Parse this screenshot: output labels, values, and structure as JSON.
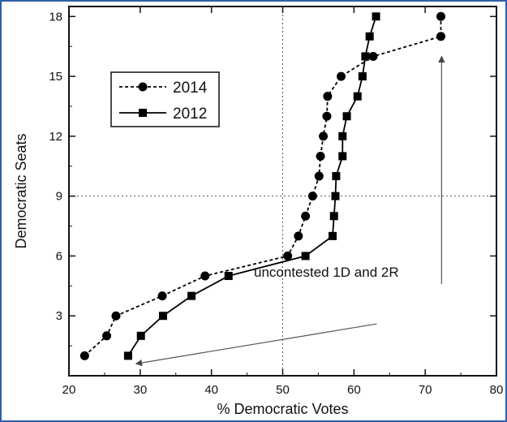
{
  "chart_data": {
    "type": "scatter",
    "xlabel": "% Democratic Votes",
    "ylabel": "Democratic Seats",
    "xlim": [
      20,
      80
    ],
    "ylim": [
      0,
      18.5
    ],
    "x_ticks": [
      "20",
      "30",
      "40",
      "50",
      "60",
      "70",
      "80"
    ],
    "y_ticks": [
      "3",
      "6",
      "9",
      "12",
      "15",
      "18"
    ],
    "reference_lines": {
      "x": 50,
      "y": 9,
      "style": "dotted"
    },
    "legend_position": "upper-left",
    "series": [
      {
        "name": "2014",
        "marker": "circle",
        "line_style": "dashed",
        "color": "#000000",
        "points": [
          [
            22.2,
            1
          ],
          [
            25.3,
            2
          ],
          [
            26.6,
            3
          ],
          [
            33.1,
            4
          ],
          [
            39.1,
            5
          ],
          [
            50.7,
            6
          ],
          [
            52.2,
            7
          ],
          [
            53.2,
            8
          ],
          [
            54.2,
            9
          ],
          [
            55.1,
            10
          ],
          [
            55.3,
            11
          ],
          [
            55.7,
            12
          ],
          [
            56.2,
            13
          ],
          [
            56.3,
            14
          ],
          [
            58.2,
            15
          ],
          [
            62.7,
            16
          ],
          [
            72.2,
            17
          ],
          [
            72.2,
            18
          ]
        ]
      },
      {
        "name": "2012",
        "marker": "square",
        "line_style": "solid",
        "color": "#000000",
        "points": [
          [
            28.3,
            1
          ],
          [
            30.1,
            2
          ],
          [
            33.2,
            3
          ],
          [
            37.2,
            4
          ],
          [
            42.4,
            5
          ],
          [
            53.2,
            6
          ],
          [
            57.0,
            7
          ],
          [
            57.2,
            8
          ],
          [
            57.4,
            9
          ],
          [
            57.5,
            10
          ],
          [
            58.4,
            11
          ],
          [
            58.4,
            12
          ],
          [
            59.0,
            13
          ],
          [
            60.5,
            14
          ],
          [
            61.2,
            15
          ],
          [
            61.6,
            16
          ],
          [
            62.2,
            17
          ],
          [
            63.1,
            18
          ]
        ]
      }
    ],
    "annotations": [
      {
        "text": "uncontested 1D and 2R",
        "anchor": [
          57.8,
          5.2
        ]
      }
    ],
    "annotation_arrows": [
      {
        "from": [
          63.2,
          2.6
        ],
        "to": [
          29.4,
          0.6
        ]
      },
      {
        "from": [
          72.3,
          4.6
        ],
        "to": [
          72.3,
          16.0
        ]
      }
    ]
  }
}
